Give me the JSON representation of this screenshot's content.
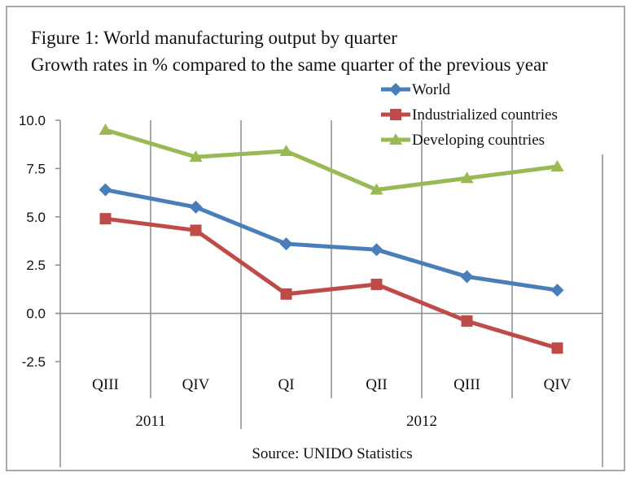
{
  "chart_data": {
    "type": "line",
    "title": "Figure 1: World manufacturing output by quarter",
    "subtitle": "Growth rates in % compared to the same quarter of the previous year",
    "categories": [
      "QIII",
      "QIV",
      "QI",
      "QII",
      "QIII",
      "QIV"
    ],
    "groups": [
      {
        "label": "2011",
        "start": 0,
        "end": 1
      },
      {
        "label": "2012",
        "start": 2,
        "end": 5
      }
    ],
    "series": [
      {
        "name": "World",
        "color": "#4a7ebb",
        "marker": "diamond",
        "values": [
          6.4,
          5.5,
          3.6,
          3.3,
          1.9,
          1.2
        ]
      },
      {
        "name": "Industrialized countries",
        "color": "#be4b48",
        "marker": "square",
        "values": [
          4.9,
          4.3,
          1.0,
          1.5,
          -0.4,
          -1.8
        ]
      },
      {
        "name": "Developing countries",
        "color": "#98b954",
        "marker": "triangle",
        "values": [
          9.5,
          8.1,
          8.4,
          6.4,
          7.0,
          7.6
        ]
      }
    ],
    "yticks": [
      "10.0",
      "7.5",
      "5.0",
      "2.5",
      "0.0",
      "-2.5"
    ],
    "ylim": [
      -2.5,
      10
    ],
    "xlabel": "",
    "ylabel": "",
    "grid": "vertical",
    "legend": "top-right",
    "source": "Source: UNIDO Statistics"
  }
}
